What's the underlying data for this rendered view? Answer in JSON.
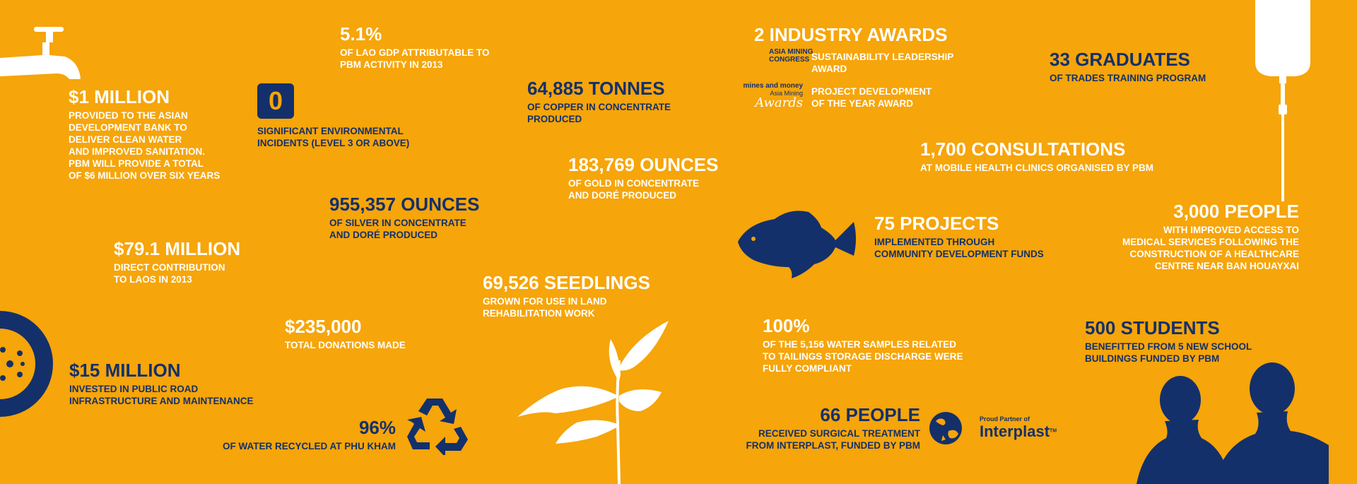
{
  "colors": {
    "background": "#f6a50a",
    "navy": "#13306b",
    "white": "#ffffff"
  },
  "stats": {
    "water": {
      "headline": "$1 MILLION",
      "desc": "PROVIDED TO THE ASIAN\nDEVELOPMENT BANK TO\nDELIVER CLEAN WATER\nAND IMPROVED SANITATION.\nPBM WILL PROVIDE A TOTAL\nOF $6 MILLION OVER SIX YEARS"
    },
    "gdp": {
      "headline": "5.1%",
      "desc": "OF LAO GDP ATTRIBUTABLE TO\nPBM ACTIVITY IN 2013"
    },
    "incidents": {
      "headline": "0",
      "desc": "SIGNIFICANT ENVIRONMENTAL\nINCIDENTS (LEVEL 3 OR ABOVE)"
    },
    "copper": {
      "headline": "64,885 TONNES",
      "desc": "OF COPPER IN CONCENTRATE\nPRODUCED"
    },
    "gold": {
      "headline": "183,769 OUNCES",
      "desc": "OF GOLD IN CONCENTRATE\nAND DORÉ PRODUCED"
    },
    "silver": {
      "headline": "955,357 OUNCES",
      "desc": "OF SILVER IN CONCENTRATE\nAND DORÉ PRODUCED"
    },
    "contribution": {
      "headline": "$79.1 MILLION",
      "desc": "DIRECT CONTRIBUTION\nTO LAOS IN 2013"
    },
    "donations": {
      "headline": "$235,000",
      "desc": "TOTAL DONATIONS MADE"
    },
    "roads": {
      "headline": "$15 MILLION",
      "desc": "INVESTED IN PUBLIC ROAD\nINFRASTRUCTURE AND MAINTENANCE"
    },
    "recycled": {
      "headline": "96%",
      "desc": "OF WATER RECYCLED AT PHU KHAM"
    },
    "seedlings": {
      "headline": "69,526 SEEDLINGS",
      "desc": "GROWN FOR USE IN LAND\nREHABILITATION WORK"
    },
    "awards": {
      "headline": "2 INDUSTRY AWARDS",
      "award1": "SUSTAINABILITY LEADERSHIP\nAWARD",
      "award2": "PROJECT DEVELOPMENT\nOF THE YEAR AWARD",
      "logo1": "ASIA MINING\nCONGRESS",
      "logo2_top": "mines and money",
      "logo2_mid": "Asia Mining",
      "logo2_bot": "Awards"
    },
    "graduates": {
      "headline": "33 GRADUATES",
      "desc": "OF TRADES TRAINING PROGRAM"
    },
    "consultations": {
      "headline": "1,700 CONSULTATIONS",
      "desc": "AT MOBILE HEALTH CLINICS ORGANISED BY PBM"
    },
    "projects": {
      "headline": "75 PROJECTS",
      "desc": "IMPLEMENTED THROUGH\nCOMMUNITY DEVELOPMENT FUNDS"
    },
    "people_health": {
      "headline": "3,000 PEOPLE",
      "desc": "WITH IMPROVED ACCESS TO\nMEDICAL SERVICES FOLLOWING THE\nCONSTRUCTION OF A HEALTHCARE\nCENTRE NEAR BAN HOUAYXAI"
    },
    "samples": {
      "headline": "100%",
      "desc": "OF THE 5,156 WATER SAMPLES RELATED\nTO TAILINGS STORAGE DISCHARGE WERE\nFULLY COMPLIANT"
    },
    "students": {
      "headline": "500 STUDENTS",
      "desc": "BENEFITTED FROM 5 NEW SCHOOL\nBUILDINGS FUNDED BY PBM"
    },
    "surgery": {
      "headline": "66 PEOPLE",
      "desc": "RECEIVED SURGICAL TREATMENT\nFROM INTERPLAST, FUNDED BY PBM"
    }
  },
  "interplast": {
    "tagline": "Proud Partner of",
    "name": "Interplast",
    "tm": "TM"
  },
  "icons": [
    "tap-icon",
    "wheel-icon",
    "recycle-icon",
    "fish-icon",
    "plant-icon",
    "iv-drip-icon",
    "children-silhouette-icon",
    "globe-icon"
  ]
}
